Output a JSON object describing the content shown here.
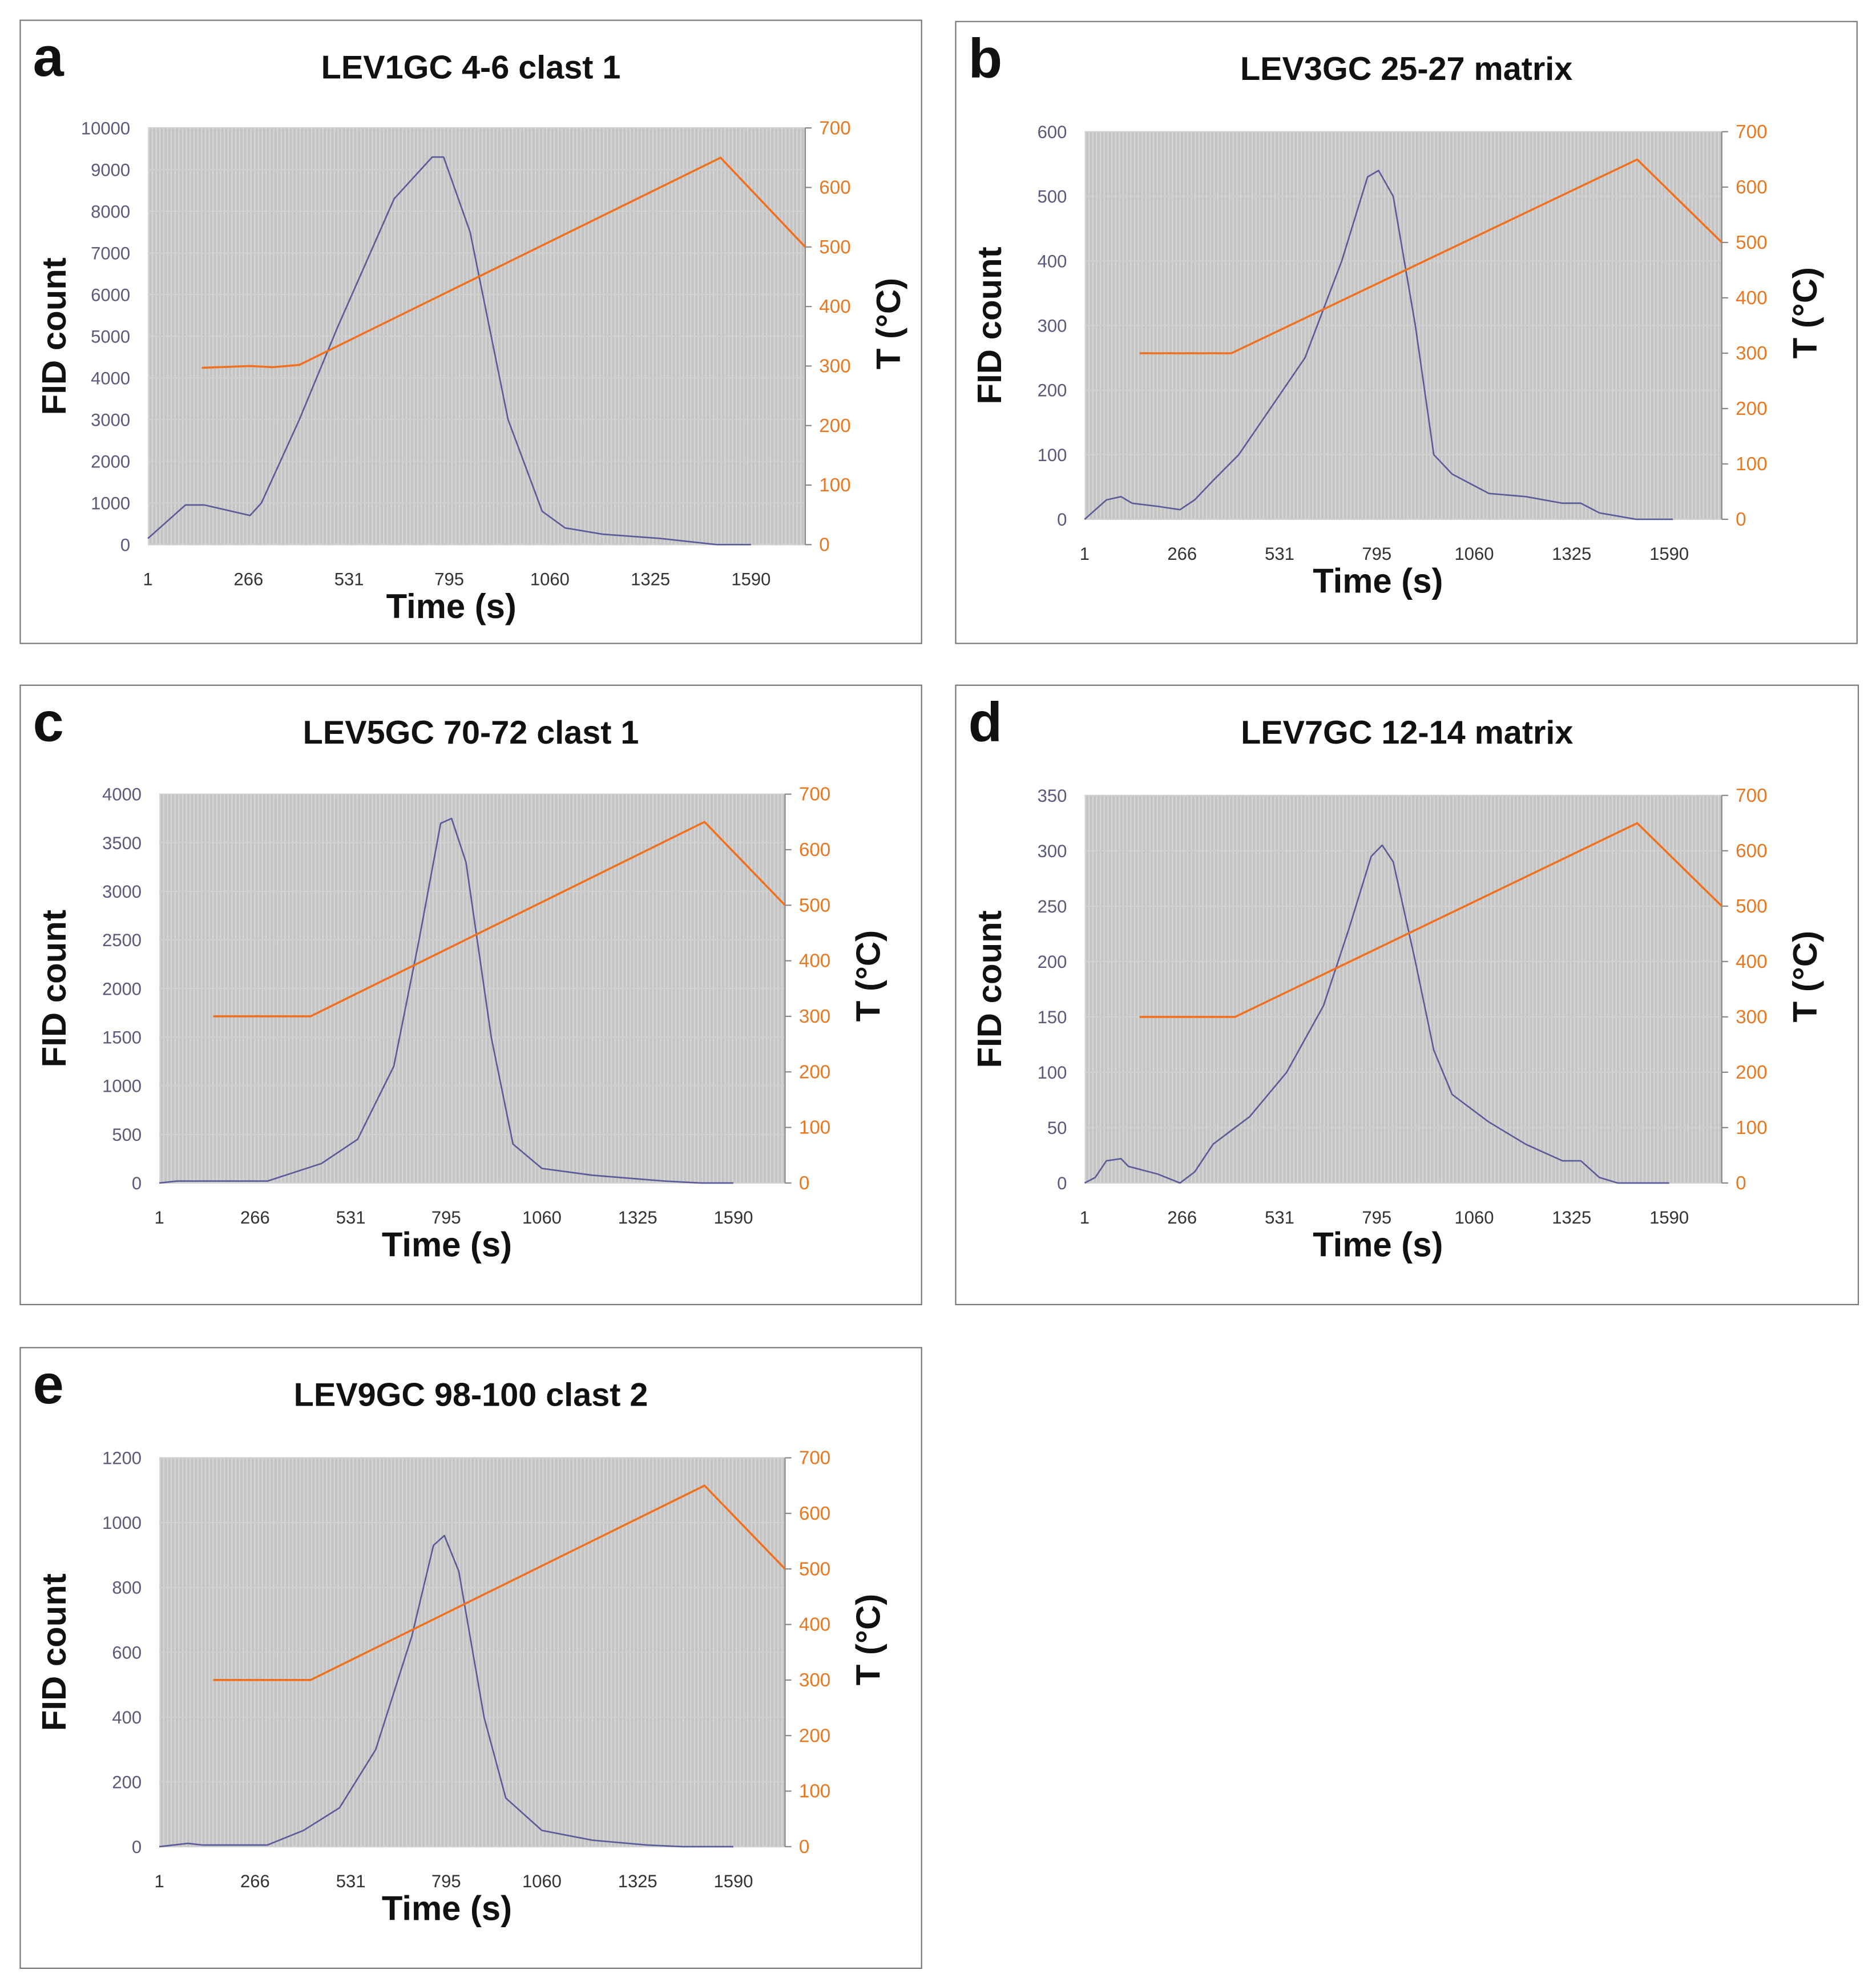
{
  "colors": {
    "fid": "#5b5b9a",
    "temp": "#f07020",
    "plot_bg": "#c4c4c4",
    "left_tick": "#5a5a7a",
    "right_tick": "#e87722"
  },
  "chart_data": [
    {
      "type": "line",
      "panel": "a",
      "title": "LEV1GC 4-6 clast 1",
      "xlabel": "Time (s)",
      "ylabel": "FID count",
      "y2label": "T (°C)",
      "xticks": [
        "1",
        "266",
        "531",
        "795",
        "1060",
        "1325",
        "1590"
      ],
      "xlim": [
        1,
        1733
      ],
      "ylim": [
        0,
        10000
      ],
      "yticks": [
        0,
        1000,
        2000,
        3000,
        4000,
        5000,
        6000,
        7000,
        8000,
        9000,
        10000
      ],
      "y2lim": [
        0,
        700
      ],
      "y2ticks": [
        0,
        100,
        200,
        300,
        400,
        500,
        600,
        700
      ],
      "grid": true,
      "series": [
        {
          "name": "FID count",
          "axis": "left",
          "x": [
            1,
            100,
            150,
            270,
            300,
            400,
            500,
            650,
            750,
            780,
            850,
            950,
            1040,
            1100,
            1200,
            1350,
            1500,
            1590
          ],
          "y": [
            150,
            950,
            950,
            700,
            1000,
            3000,
            5200,
            8300,
            9300,
            9300,
            7500,
            3000,
            800,
            400,
            250,
            150,
            0,
            0
          ]
        },
        {
          "name": "T",
          "axis": "right",
          "x": [
            143,
            270,
            330,
            400,
            1510,
            1733
          ],
          "y": [
            297,
            300,
            298,
            302,
            650,
            500
          ]
        }
      ]
    },
    {
      "type": "line",
      "panel": "b",
      "title": "LEV3GC 25-27 matrix",
      "xlabel": "Time (s)",
      "ylabel": "FID count",
      "y2label": "T (°C)",
      "xticks": [
        "1",
        "266",
        "531",
        "795",
        "1060",
        "1325",
        "1590"
      ],
      "xlim": [
        1,
        1733
      ],
      "ylim": [
        0,
        600
      ],
      "yticks": [
        0,
        100,
        200,
        300,
        400,
        500,
        600
      ],
      "y2lim": [
        0,
        700
      ],
      "y2ticks": [
        0,
        100,
        200,
        300,
        400,
        500,
        600,
        700
      ],
      "grid": true,
      "series": [
        {
          "name": "FID count",
          "axis": "left",
          "x": [
            1,
            60,
            100,
            130,
            200,
            260,
            300,
            350,
            420,
            480,
            600,
            700,
            770,
            800,
            840,
            900,
            950,
            1000,
            1100,
            1200,
            1300,
            1350,
            1400,
            1500,
            1600
          ],
          "y": [
            0,
            30,
            35,
            25,
            20,
            15,
            30,
            60,
            100,
            150,
            250,
            400,
            530,
            540,
            500,
            300,
            100,
            70,
            40,
            35,
            25,
            25,
            10,
            0,
            0
          ]
        },
        {
          "name": "T",
          "axis": "right",
          "x": [
            150,
            400,
            1503,
            1733
          ],
          "y": [
            300,
            300,
            650,
            500
          ]
        }
      ]
    },
    {
      "type": "line",
      "panel": "c",
      "title": "LEV5GC 70-72 clast 1",
      "xlabel": "Time (s)",
      "ylabel": "FID count",
      "y2label": "T (°C)",
      "xticks": [
        "1",
        "266",
        "531",
        "795",
        "1060",
        "1325",
        "1590"
      ],
      "xlim": [
        1,
        1733
      ],
      "ylim": [
        0,
        4000
      ],
      "yticks": [
        0,
        500,
        1000,
        1500,
        2000,
        2500,
        3000,
        3500,
        4000
      ],
      "y2lim": [
        0,
        700
      ],
      "y2ticks": [
        0,
        100,
        200,
        300,
        400,
        500,
        600,
        700
      ],
      "grid": true,
      "series": [
        {
          "name": "FID count",
          "axis": "left",
          "x": [
            1,
            50,
            300,
            450,
            550,
            650,
            720,
            780,
            810,
            850,
            920,
            980,
            1060,
            1200,
            1400,
            1500,
            1590
          ],
          "y": [
            0,
            20,
            20,
            200,
            450,
            1200,
            2500,
            3700,
            3750,
            3300,
            1500,
            400,
            150,
            80,
            20,
            0,
            0
          ]
        },
        {
          "name": "T",
          "axis": "right",
          "x": [
            150,
            420,
            1510,
            1733
          ],
          "y": [
            300,
            300,
            650,
            500
          ]
        }
      ]
    },
    {
      "type": "line",
      "panel": "d",
      "title": "LEV7GC 12-14 matrix",
      "xlabel": "Time (s)",
      "ylabel": "FID count",
      "y2label": "T (°C)",
      "xticks": [
        "1",
        "266",
        "531",
        "795",
        "1060",
        "1325",
        "1590"
      ],
      "xlim": [
        1,
        1733
      ],
      "ylim": [
        0,
        350
      ],
      "yticks": [
        0,
        50,
        100,
        150,
        200,
        250,
        300,
        350
      ],
      "y2lim": [
        0,
        700
      ],
      "y2ticks": [
        0,
        100,
        200,
        300,
        400,
        500,
        600,
        700
      ],
      "grid": true,
      "series": [
        {
          "name": "FID count",
          "axis": "left",
          "x": [
            1,
            30,
            60,
            100,
            120,
            200,
            260,
            300,
            350,
            450,
            550,
            650,
            720,
            780,
            810,
            840,
            900,
            950,
            1000,
            1100,
            1200,
            1300,
            1350,
            1400,
            1450,
            1590
          ],
          "y": [
            0,
            5,
            20,
            22,
            15,
            8,
            0,
            10,
            35,
            60,
            100,
            160,
            230,
            295,
            305,
            290,
            200,
            120,
            80,
            55,
            35,
            20,
            20,
            5,
            0,
            0
          ]
        },
        {
          "name": "T",
          "axis": "right",
          "x": [
            150,
            410,
            1503,
            1733
          ],
          "y": [
            300,
            300,
            650,
            500
          ]
        }
      ]
    },
    {
      "type": "line",
      "panel": "e",
      "title": "LEV9GC 98-100 clast 2",
      "xlabel": "Time (s)",
      "ylabel": "FID count",
      "y2label": "T (°C)",
      "xticks": [
        "1",
        "266",
        "531",
        "795",
        "1060",
        "1325",
        "1590"
      ],
      "xlim": [
        1,
        1733
      ],
      "ylim": [
        0,
        1200
      ],
      "yticks": [
        0,
        200,
        400,
        600,
        800,
        1000,
        1200
      ],
      "y2lim": [
        0,
        700
      ],
      "y2ticks": [
        0,
        100,
        200,
        300,
        400,
        500,
        600,
        700
      ],
      "grid": true,
      "series": [
        {
          "name": "FID count",
          "axis": "left",
          "x": [
            1,
            80,
            120,
            300,
            400,
            500,
            600,
            700,
            760,
            790,
            830,
            900,
            960,
            1060,
            1200,
            1350,
            1450,
            1590
          ],
          "y": [
            0,
            10,
            5,
            5,
            50,
            120,
            300,
            650,
            930,
            960,
            850,
            400,
            150,
            50,
            20,
            5,
            0,
            0
          ]
        },
        {
          "name": "T",
          "axis": "right",
          "x": [
            150,
            420,
            1510,
            1733
          ],
          "y": [
            300,
            300,
            650,
            500
          ]
        }
      ]
    }
  ]
}
